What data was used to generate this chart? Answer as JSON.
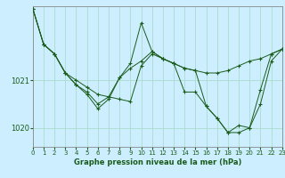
{
  "title": "Graphe pression niveau de la mer (hPa)",
  "bg_color": "#cceeff",
  "line_color": "#1a5c1a",
  "grid_color": "#aaddcc",
  "xlim": [
    0,
    23
  ],
  "ylim": [
    1019.6,
    1022.55
  ],
  "y_ticks": [
    1020,
    1021
  ],
  "x_ticks": [
    0,
    1,
    2,
    3,
    4,
    5,
    6,
    7,
    8,
    9,
    10,
    11,
    12,
    13,
    14,
    15,
    16,
    17,
    18,
    19,
    20,
    21,
    22,
    23
  ],
  "series": [
    [
      1022.5,
      1021.75,
      1021.55,
      1021.15,
      1021.0,
      1020.85,
      1020.7,
      1020.65,
      1020.6,
      1020.55,
      1021.3,
      1021.55,
      1021.45,
      1021.35,
      1021.25,
      1021.2,
      1021.15,
      1021.15,
      1021.2,
      1021.3,
      1021.4,
      1021.45,
      1021.55,
      1021.65
    ],
    [
      1022.5,
      1021.75,
      1021.55,
      1021.15,
      1020.9,
      1020.75,
      1020.5,
      1020.65,
      1021.05,
      1021.35,
      1022.2,
      1021.6,
      1021.45,
      1021.35,
      1020.75,
      1020.75,
      1020.45,
      1020.2,
      1019.9,
      1019.9,
      1020.0,
      1020.8,
      1021.55,
      1021.65
    ],
    [
      1022.5,
      1021.75,
      1021.55,
      1021.15,
      1020.9,
      1020.7,
      1020.4,
      1020.6,
      1021.05,
      1021.25,
      1021.4,
      1021.6,
      1021.45,
      1021.35,
      1021.25,
      1021.2,
      1020.45,
      1020.2,
      1019.9,
      1020.05,
      1020.0,
      1020.5,
      1021.4,
      1021.65
    ]
  ]
}
